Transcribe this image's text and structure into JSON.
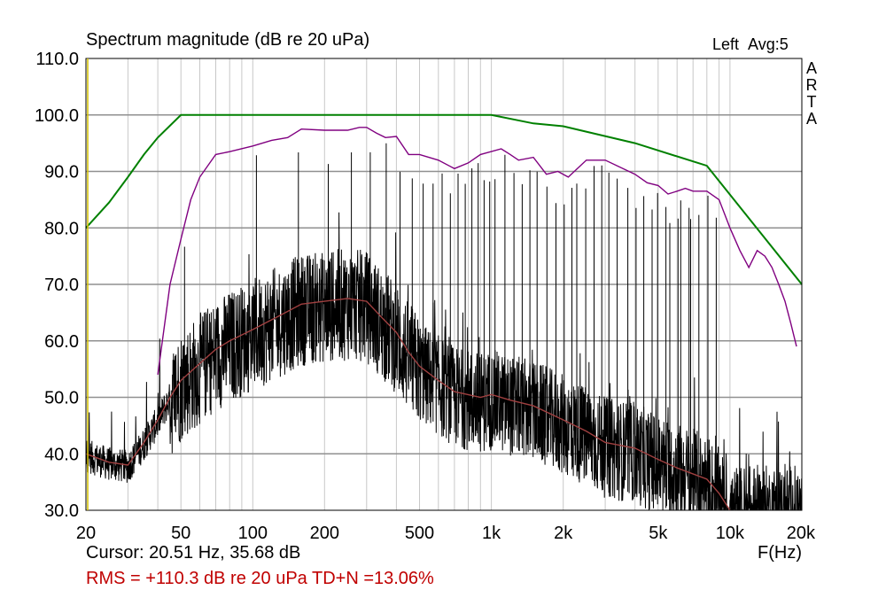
{
  "chart_data": {
    "type": "line",
    "title": "Spectrum magnitude (dB re 20 uPa)",
    "channel": "Left",
    "averaging": "Avg:5",
    "watermark": [
      "A",
      "R",
      "T",
      "A"
    ],
    "xlabel": "F(Hz)",
    "xscale": "log",
    "xlim": [
      20,
      20000
    ],
    "ylim": [
      30,
      110
    ],
    "grid": true,
    "x_ticks": [
      {
        "value": 20,
        "label": "20"
      },
      {
        "value": 50,
        "label": "50"
      },
      {
        "value": 100,
        "label": "100"
      },
      {
        "value": 200,
        "label": "200"
      },
      {
        "value": 500,
        "label": "500"
      },
      {
        "value": 1000,
        "label": "1k"
      },
      {
        "value": 2000,
        "label": "2k"
      },
      {
        "value": 5000,
        "label": "5k"
      },
      {
        "value": 10000,
        "label": "10k"
      },
      {
        "value": 20000,
        "label": "20k"
      }
    ],
    "y_ticks": [
      {
        "value": 30,
        "label": "30.0"
      },
      {
        "value": 40,
        "label": "40.0"
      },
      {
        "value": 50,
        "label": "50.0"
      },
      {
        "value": 60,
        "label": "60.0"
      },
      {
        "value": 70,
        "label": "70.0"
      },
      {
        "value": 80,
        "label": "80.0"
      },
      {
        "value": 90,
        "label": "90.0"
      },
      {
        "value": 100,
        "label": "100.0"
      },
      {
        "value": 110,
        "label": "110.0"
      }
    ],
    "series": [
      {
        "name": "limit",
        "color": "#008000",
        "points": [
          [
            20,
            80
          ],
          [
            25,
            84.5
          ],
          [
            30,
            89
          ],
          [
            35,
            93
          ],
          [
            40,
            96
          ],
          [
            50,
            100
          ],
          [
            1000,
            100
          ],
          [
            1500,
            98.5
          ],
          [
            2000,
            98
          ],
          [
            4000,
            95
          ],
          [
            8000,
            91
          ],
          [
            20000,
            70
          ]
        ]
      },
      {
        "name": "harmonic-envelope",
        "color": "#800080",
        "points": [
          [
            40,
            54
          ],
          [
            45,
            70
          ],
          [
            50,
            78
          ],
          [
            55,
            85
          ],
          [
            60,
            89
          ],
          [
            70,
            93
          ],
          [
            80,
            93.5
          ],
          [
            100,
            94.5
          ],
          [
            120,
            95.5
          ],
          [
            140,
            96
          ],
          [
            160,
            97.5
          ],
          [
            200,
            97.3
          ],
          [
            250,
            97.3
          ],
          [
            280,
            97.8
          ],
          [
            300,
            97.8
          ],
          [
            330,
            96.8
          ],
          [
            360,
            96
          ],
          [
            400,
            96.2
          ],
          [
            450,
            93
          ],
          [
            500,
            93
          ],
          [
            600,
            92
          ],
          [
            700,
            90.5
          ],
          [
            800,
            91.5
          ],
          [
            900,
            93
          ],
          [
            1100,
            94
          ],
          [
            1200,
            93
          ],
          [
            1300,
            92
          ],
          [
            1500,
            92.5
          ],
          [
            1700,
            89.5
          ],
          [
            1900,
            90
          ],
          [
            2100,
            89
          ],
          [
            2500,
            92
          ],
          [
            3000,
            92
          ],
          [
            4000,
            89.5
          ],
          [
            4500,
            88
          ],
          [
            5000,
            87.5
          ],
          [
            5500,
            86
          ],
          [
            6000,
            86.5
          ],
          [
            6500,
            87
          ],
          [
            7000,
            86.5
          ],
          [
            8000,
            86.5
          ],
          [
            9000,
            85
          ],
          [
            10000,
            80
          ],
          [
            11000,
            76
          ],
          [
            12000,
            73
          ],
          [
            13000,
            76
          ],
          [
            14000,
            75
          ],
          [
            15000,
            73
          ],
          [
            16000,
            70
          ],
          [
            17000,
            67
          ],
          [
            18000,
            63
          ],
          [
            19000,
            59
          ]
        ]
      },
      {
        "name": "noise-average",
        "color": "#a04040",
        "points": [
          [
            20,
            40
          ],
          [
            25,
            38.5
          ],
          [
            30,
            38
          ],
          [
            35,
            42
          ],
          [
            40,
            46
          ],
          [
            45,
            50
          ],
          [
            50,
            53
          ],
          [
            60,
            56
          ],
          [
            70,
            58.5
          ],
          [
            80,
            60
          ],
          [
            100,
            62
          ],
          [
            130,
            64.5
          ],
          [
            160,
            66.5
          ],
          [
            200,
            67
          ],
          [
            250,
            67.5
          ],
          [
            300,
            67
          ],
          [
            350,
            64
          ],
          [
            400,
            61.5
          ],
          [
            450,
            58
          ],
          [
            500,
            55.5
          ],
          [
            600,
            53
          ],
          [
            700,
            51
          ],
          [
            900,
            50
          ],
          [
            1000,
            50.5
          ],
          [
            1200,
            49.5
          ],
          [
            1500,
            48.5
          ],
          [
            2000,
            46
          ],
          [
            2500,
            44
          ],
          [
            3000,
            42
          ],
          [
            4000,
            41
          ],
          [
            5000,
            39
          ],
          [
            6000,
            37.5
          ],
          [
            8000,
            35.5
          ],
          [
            9000,
            33
          ],
          [
            10000,
            30
          ]
        ]
      },
      {
        "name": "spectrum",
        "color": "#000000",
        "description": "raw noise-floor spectrum with harmonic peaks"
      }
    ]
  },
  "status": {
    "cursor": "Cursor: 20.51 Hz, 35.68 dB",
    "measurement": "RMS = +110.3 dB re 20 uPa  TD+N =13.06%"
  },
  "colors": {
    "grid": "#c8c8c8",
    "axis": "#000000",
    "limit": "#008000",
    "envelope": "#800080",
    "average": "#a04040",
    "status_text": "#c00000"
  }
}
